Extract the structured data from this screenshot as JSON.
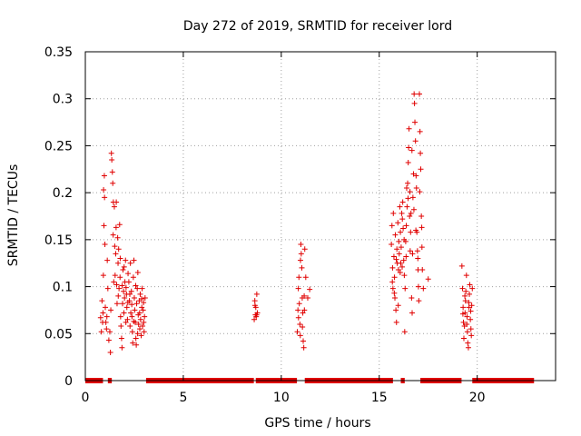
{
  "chart_data": {
    "type": "scatter",
    "title": "Day 272 of 2019, SRMTID for receiver lord",
    "xlabel": "GPS time / hours",
    "ylabel": "SRMTID / TECUs",
    "xlim": [
      0,
      24
    ],
    "ylim": [
      0,
      0.35
    ],
    "xticks": [
      0,
      5,
      10,
      15,
      20
    ],
    "xtick_labels": [
      "0",
      "5",
      "10",
      "15",
      "20"
    ],
    "yticks": [
      0,
      0.05,
      0.1,
      0.15,
      0.2,
      0.25,
      0.3,
      0.35
    ],
    "ytick_labels": [
      "0",
      "0.05",
      "0.1",
      "0.15",
      "0.2",
      "0.25",
      "0.3",
      "0.35"
    ],
    "grid": true,
    "marker": "+",
    "color": "#e00000",
    "zero_segments": [
      [
        0.0,
        0.9
      ],
      [
        1.15,
        1.35
      ],
      [
        3.1,
        8.6
      ],
      [
        8.7,
        10.8
      ],
      [
        11.2,
        15.7
      ],
      [
        16.1,
        16.3
      ],
      [
        17.1,
        19.2
      ],
      [
        19.75,
        22.9
      ]
    ],
    "clusters": [
      {
        "x_start": 0.7,
        "x_end": 1.5,
        "points": [
          [
            0.78,
            0.067
          ],
          [
            0.82,
            0.052
          ],
          [
            0.85,
            0.085
          ],
          [
            0.88,
            0.062
          ],
          [
            0.9,
            0.072
          ],
          [
            0.92,
            0.112
          ],
          [
            0.95,
            0.165
          ],
          [
            0.97,
            0.218
          ],
          [
            0.98,
            0.195
          ],
          [
            1.0,
            0.145
          ],
          [
            1.02,
            0.078
          ],
          [
            1.05,
            0.062
          ],
          [
            1.08,
            0.055
          ],
          [
            1.1,
            0.068
          ],
          [
            1.12,
            0.128
          ],
          [
            1.15,
            0.098
          ],
          [
            1.2,
            0.043
          ],
          [
            1.25,
            0.052
          ],
          [
            1.3,
            0.075
          ],
          [
            1.33,
            0.242
          ],
          [
            1.35,
            0.235
          ],
          [
            1.38,
            0.222
          ],
          [
            1.4,
            0.21
          ],
          [
            1.42,
            0.155
          ],
          [
            1.45,
            0.105
          ],
          [
            1.48,
            0.185
          ],
          [
            1.5,
            0.143
          ],
          [
            0.93,
            0.203
          ],
          [
            1.28,
            0.03
          ],
          [
            1.43,
            0.19
          ]
        ]
      },
      {
        "x_start": 1.5,
        "x_end": 2.2,
        "points": [
          [
            1.52,
            0.112
          ],
          [
            1.55,
            0.135
          ],
          [
            1.57,
            0.163
          ],
          [
            1.6,
            0.102
          ],
          [
            1.62,
            0.082
          ],
          [
            1.65,
            0.152
          ],
          [
            1.67,
            0.125
          ],
          [
            1.7,
            0.14
          ],
          [
            1.72,
            0.098
          ],
          [
            1.75,
            0.166
          ],
          [
            1.77,
            0.11
          ],
          [
            1.8,
            0.068
          ],
          [
            1.82,
            0.058
          ],
          [
            1.85,
            0.045
          ],
          [
            1.87,
            0.035
          ],
          [
            1.9,
            0.082
          ],
          [
            1.92,
            0.118
          ],
          [
            1.95,
            0.095
          ],
          [
            1.97,
            0.072
          ],
          [
            2.0,
            0.088
          ],
          [
            2.02,
            0.105
          ],
          [
            2.05,
            0.128
          ],
          [
            2.07,
            0.062
          ],
          [
            2.1,
            0.092
          ],
          [
            2.12,
            0.078
          ],
          [
            2.15,
            0.065
          ],
          [
            2.18,
            0.114
          ],
          [
            1.58,
            0.19
          ],
          [
            1.68,
            0.09
          ],
          [
            1.78,
            0.13
          ],
          [
            1.88,
            0.101
          ],
          [
            1.98,
            0.121
          ],
          [
            2.08,
            0.099
          ],
          [
            2.17,
            0.083
          ]
        ]
      },
      {
        "x_start": 2.2,
        "x_end": 3.1,
        "points": [
          [
            2.22,
            0.105
          ],
          [
            2.25,
            0.085
          ],
          [
            2.28,
            0.058
          ],
          [
            2.3,
            0.125
          ],
          [
            2.32,
            0.072
          ],
          [
            2.35,
            0.095
          ],
          [
            2.38,
            0.068
          ],
          [
            2.4,
            0.052
          ],
          [
            2.42,
            0.04
          ],
          [
            2.45,
            0.11
          ],
          [
            2.48,
            0.128
          ],
          [
            2.5,
            0.088
          ],
          [
            2.52,
            0.075
          ],
          [
            2.55,
            0.062
          ],
          [
            2.58,
            0.045
          ],
          [
            2.6,
            0.038
          ],
          [
            2.62,
            0.082
          ],
          [
            2.65,
            0.098
          ],
          [
            2.68,
            0.115
          ],
          [
            2.7,
            0.07
          ],
          [
            2.72,
            0.06
          ],
          [
            2.75,
            0.085
          ],
          [
            2.78,
            0.055
          ],
          [
            2.8,
            0.092
          ],
          [
            2.82,
            0.065
          ],
          [
            2.85,
            0.048
          ],
          [
            2.88,
            0.078
          ],
          [
            2.9,
            0.098
          ],
          [
            2.92,
            0.058
          ],
          [
            2.95,
            0.075
          ],
          [
            2.98,
            0.062
          ],
          [
            3.0,
            0.052
          ],
          [
            3.02,
            0.068
          ],
          [
            3.05,
            0.088
          ],
          [
            2.27,
            0.092
          ],
          [
            2.37,
            0.081
          ],
          [
            2.47,
            0.063
          ],
          [
            2.57,
            0.101
          ],
          [
            2.67,
            0.05
          ],
          [
            2.77,
            0.072
          ],
          [
            2.87,
            0.087
          ],
          [
            2.97,
            0.083
          ]
        ]
      },
      {
        "x_start": 8.6,
        "x_end": 8.8,
        "points": [
          [
            8.62,
            0.065
          ],
          [
            8.65,
            0.085
          ],
          [
            8.68,
            0.07
          ],
          [
            8.7,
            0.078
          ],
          [
            8.72,
            0.068
          ],
          [
            8.75,
            0.092
          ],
          [
            8.78,
            0.072
          ],
          [
            8.66,
            0.08
          ],
          [
            8.74,
            0.07
          ]
        ]
      },
      {
        "x_start": 10.8,
        "x_end": 11.5,
        "points": [
          [
            10.82,
            0.052
          ],
          [
            10.85,
            0.075
          ],
          [
            10.87,
            0.098
          ],
          [
            10.9,
            0.11
          ],
          [
            10.92,
            0.082
          ],
          [
            10.95,
            0.06
          ],
          [
            10.97,
            0.048
          ],
          [
            11.0,
            0.145
          ],
          [
            11.02,
            0.135
          ],
          [
            11.05,
            0.12
          ],
          [
            11.07,
            0.088
          ],
          [
            11.1,
            0.072
          ],
          [
            11.12,
            0.042
          ],
          [
            11.15,
            0.035
          ],
          [
            11.17,
            0.09
          ],
          [
            11.2,
            0.14
          ],
          [
            11.25,
            0.11
          ],
          [
            11.35,
            0.088
          ],
          [
            11.45,
            0.097
          ],
          [
            10.88,
            0.067
          ],
          [
            10.98,
            0.128
          ],
          [
            11.08,
            0.057
          ],
          [
            11.18,
            0.075
          ]
        ]
      },
      {
        "x_start": 15.6,
        "x_end": 16.6,
        "points": [
          [
            15.62,
            0.145
          ],
          [
            15.65,
            0.165
          ],
          [
            15.68,
            0.12
          ],
          [
            15.7,
            0.098
          ],
          [
            15.72,
            0.178
          ],
          [
            15.75,
            0.132
          ],
          [
            15.78,
            0.11
          ],
          [
            15.8,
            0.088
          ],
          [
            15.82,
            0.155
          ],
          [
            15.85,
            0.075
          ],
          [
            15.88,
            0.062
          ],
          [
            15.9,
            0.14
          ],
          [
            15.92,
            0.125
          ],
          [
            15.95,
            0.168
          ],
          [
            15.98,
            0.118
          ],
          [
            16.0,
            0.148
          ],
          [
            16.02,
            0.135
          ],
          [
            16.05,
            0.185
          ],
          [
            16.08,
            0.158
          ],
          [
            16.1,
            0.125
          ],
          [
            16.12,
            0.142
          ],
          [
            16.15,
            0.178
          ],
          [
            16.18,
            0.172
          ],
          [
            16.2,
            0.19
          ],
          [
            16.22,
            0.162
          ],
          [
            16.25,
            0.128
          ],
          [
            16.28,
            0.112
          ],
          [
            16.3,
            0.052
          ],
          [
            16.32,
            0.098
          ],
          [
            16.35,
            0.148
          ],
          [
            16.38,
            0.165
          ],
          [
            16.4,
            0.205
          ],
          [
            16.42,
            0.185
          ],
          [
            16.45,
            0.21
          ],
          [
            16.48,
            0.232
          ],
          [
            16.5,
            0.248
          ],
          [
            16.52,
            0.268
          ],
          [
            16.55,
            0.175
          ],
          [
            16.58,
            0.138
          ],
          [
            16.6,
            0.158
          ],
          [
            15.67,
            0.105
          ],
          [
            15.77,
            0.093
          ],
          [
            15.87,
            0.129
          ],
          [
            15.97,
            0.08
          ],
          [
            16.07,
            0.115
          ],
          [
            16.17,
            0.121
          ],
          [
            16.27,
            0.15
          ],
          [
            16.37,
            0.132
          ],
          [
            16.47,
            0.194
          ],
          [
            16.57,
            0.201
          ]
        ]
      },
      {
        "x_start": 16.6,
        "x_end": 17.5,
        "points": [
          [
            16.62,
            0.178
          ],
          [
            16.65,
            0.088
          ],
          [
            16.68,
            0.072
          ],
          [
            16.7,
            0.135
          ],
          [
            16.72,
            0.195
          ],
          [
            16.75,
            0.22
          ],
          [
            16.78,
            0.305
          ],
          [
            16.8,
            0.295
          ],
          [
            16.82,
            0.275
          ],
          [
            16.85,
            0.255
          ],
          [
            16.88,
            0.218
          ],
          [
            16.9,
            0.205
          ],
          [
            16.92,
            0.158
          ],
          [
            16.95,
            0.138
          ],
          [
            16.98,
            0.118
          ],
          [
            17.0,
            0.1
          ],
          [
            17.02,
            0.085
          ],
          [
            17.05,
            0.305
          ],
          [
            17.08,
            0.265
          ],
          [
            17.1,
            0.242
          ],
          [
            17.12,
            0.225
          ],
          [
            17.15,
            0.175
          ],
          [
            17.18,
            0.142
          ],
          [
            17.2,
            0.118
          ],
          [
            17.25,
            0.098
          ],
          [
            17.5,
            0.108
          ],
          [
            16.67,
            0.245
          ],
          [
            16.77,
            0.182
          ],
          [
            16.87,
            0.16
          ],
          [
            16.97,
            0.13
          ],
          [
            17.07,
            0.201
          ],
          [
            17.17,
            0.163
          ]
        ]
      },
      {
        "x_start": 19.2,
        "x_end": 19.8,
        "points": [
          [
            19.22,
            0.122
          ],
          [
            19.25,
            0.098
          ],
          [
            19.28,
            0.078
          ],
          [
            19.3,
            0.062
          ],
          [
            19.32,
            0.045
          ],
          [
            19.35,
            0.058
          ],
          [
            19.38,
            0.072
          ],
          [
            19.4,
            0.085
          ],
          [
            19.42,
            0.095
          ],
          [
            19.45,
            0.112
          ],
          [
            19.48,
            0.068
          ],
          [
            19.5,
            0.052
          ],
          [
            19.52,
            0.04
          ],
          [
            19.55,
            0.035
          ],
          [
            19.58,
            0.078
          ],
          [
            19.6,
            0.092
          ],
          [
            19.62,
            0.102
          ],
          [
            19.65,
            0.065
          ],
          [
            19.68,
            0.055
          ],
          [
            19.7,
            0.048
          ],
          [
            19.72,
            0.08
          ],
          [
            19.75,
            0.098
          ],
          [
            19.27,
            0.071
          ],
          [
            19.37,
            0.09
          ],
          [
            19.47,
            0.06
          ],
          [
            19.57,
            0.083
          ],
          [
            19.67,
            0.074
          ]
        ]
      }
    ]
  }
}
